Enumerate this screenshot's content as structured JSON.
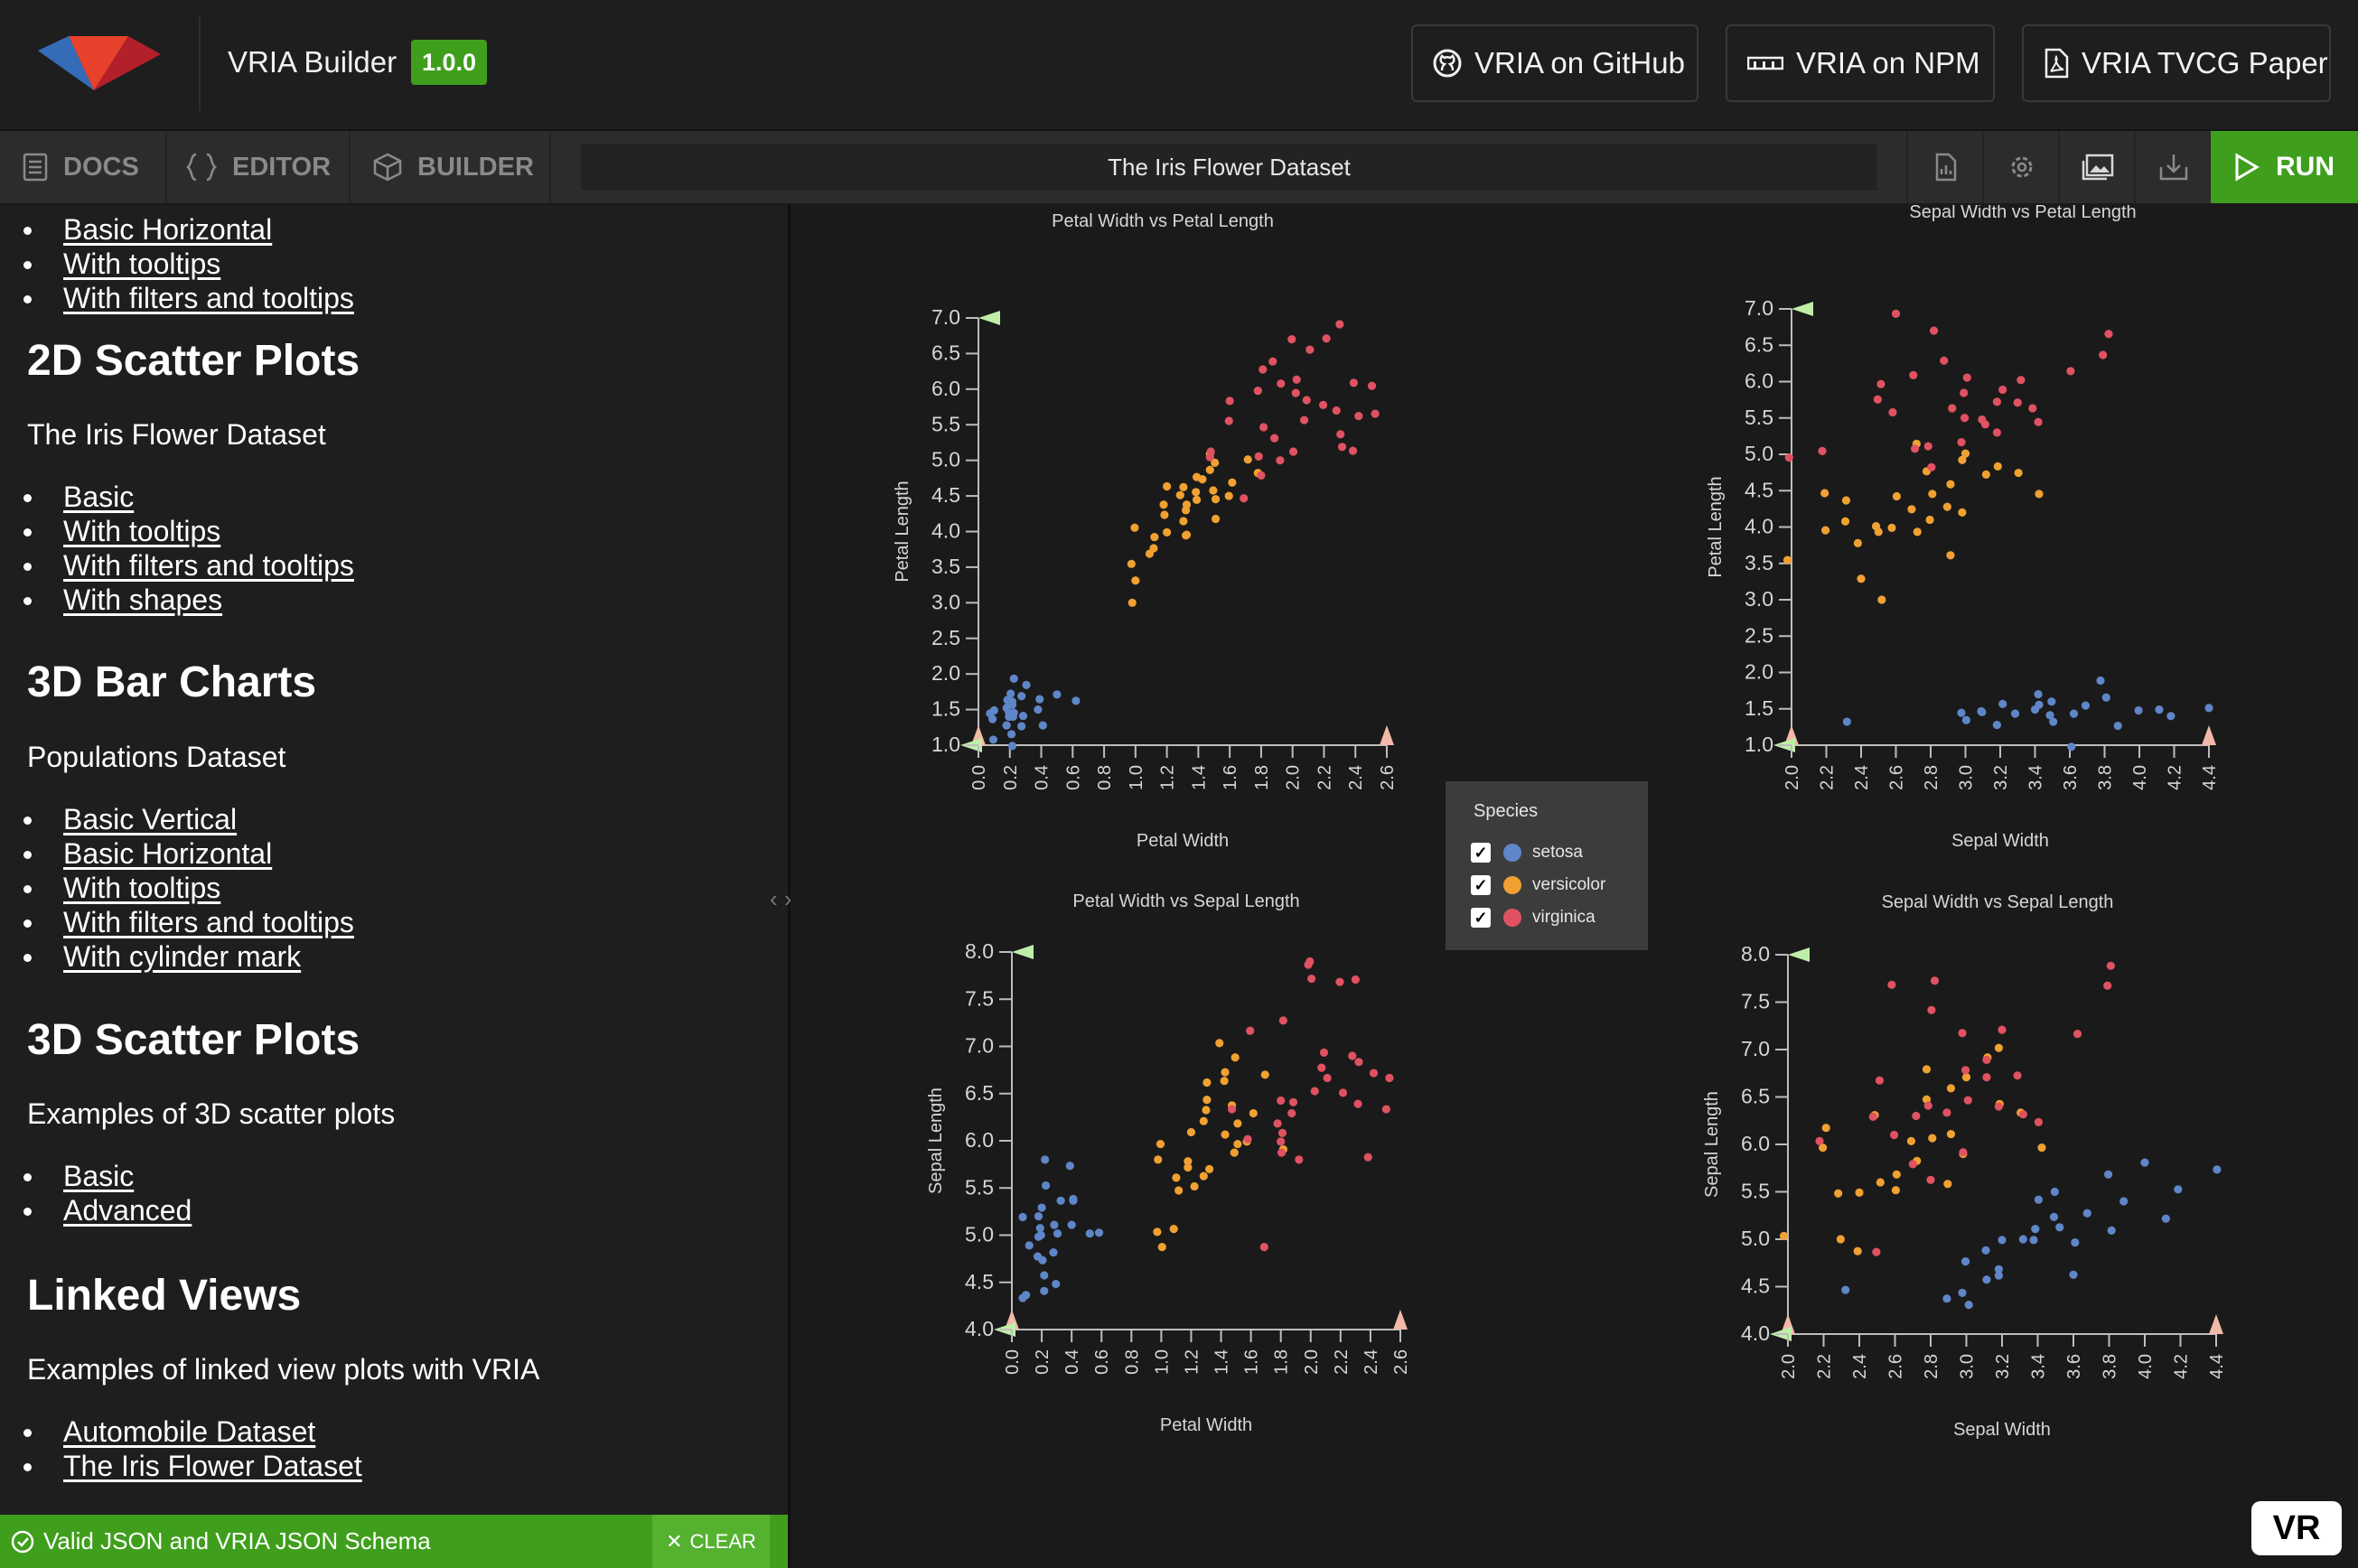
{
  "header": {
    "app_title": "VRIA Builder",
    "version": "1.0.0",
    "links": [
      {
        "label": "VRIA on GitHub",
        "icon": "github-icon"
      },
      {
        "label": "VRIA on NPM",
        "icon": "npm-icon"
      },
      {
        "label": "VRIA TVCG Paper",
        "icon": "pdf-icon"
      }
    ]
  },
  "toolbar": {
    "tabs": [
      {
        "label": "DOCS",
        "icon": "docs-icon"
      },
      {
        "label": "EDITOR",
        "icon": "code-braces-icon"
      },
      {
        "label": "BUILDER",
        "icon": "cube-icon"
      }
    ],
    "document_title": "The Iris Flower Dataset",
    "icons": [
      "file-icon",
      "gear-icon",
      "image-icon",
      "download-icon"
    ],
    "run_label": "RUN"
  },
  "docs": {
    "top_links": [
      "Basic Horizontal",
      "With tooltips",
      "With filters and tooltips"
    ],
    "sections": [
      {
        "title": "2D Scatter Plots",
        "subtitle": "The Iris Flower Dataset",
        "links": [
          "Basic",
          "With tooltips",
          "With filters and tooltips",
          "With shapes"
        ]
      },
      {
        "title": "3D Bar Charts",
        "subtitle": "Populations Dataset",
        "links": [
          "Basic Vertical",
          "Basic Horizontal",
          "With tooltips",
          "With filters and tooltips",
          "With cylinder mark"
        ]
      },
      {
        "title": "3D Scatter Plots",
        "subtitle": "Examples of 3D scatter plots",
        "links": [
          "Basic",
          "Advanced"
        ]
      },
      {
        "title": "Linked Views",
        "subtitle": "Examples of linked view plots with VRIA",
        "links": [
          "Automobile Dataset",
          "The Iris Flower Dataset"
        ]
      }
    ]
  },
  "status": {
    "message": "Valid JSON and VRIA JSON Schema",
    "clear_label": "CLEAR"
  },
  "legend": {
    "title": "Species",
    "items": [
      {
        "label": "setosa",
        "color": "#5f86c8",
        "checked": true
      },
      {
        "label": "versicolor",
        "color": "#f0a131",
        "checked": true
      },
      {
        "label": "virginica",
        "color": "#e05262",
        "checked": true
      }
    ]
  },
  "vr_label": "VR",
  "colors": {
    "accent": "#3f9f1c",
    "setosa": "#5f86c8",
    "versicolor": "#f0a131",
    "virginica": "#e05262"
  },
  "chart_data": [
    {
      "type": "scatter",
      "title": "Petal Width vs Petal Length",
      "xlabel": "Petal Width",
      "ylabel": "Petal Length",
      "xlim": [
        0.0,
        2.6
      ],
      "ylim": [
        1.0,
        7.0
      ],
      "xticks": [
        "0.0",
        "0.2",
        "0.4",
        "0.6",
        "0.8",
        "1.0",
        "1.2",
        "1.4",
        "1.6",
        "1.8",
        "2.0",
        "2.2",
        "2.4",
        "2.6"
      ],
      "yticks": [
        "1.0",
        "1.5",
        "2.0",
        "2.5",
        "3.0",
        "3.5",
        "4.0",
        "4.5",
        "5.0",
        "5.5",
        "6.0",
        "6.5",
        "7.0"
      ],
      "series": [
        {
          "name": "setosa",
          "x": [
            0.1,
            0.2,
            0.2,
            0.2,
            0.1,
            0.2,
            0.3,
            0.2,
            0.2,
            0.4,
            0.2,
            0.3,
            0.1,
            0.2,
            0.4,
            0.5,
            0.6,
            0.2,
            0.3,
            0.2,
            0.1,
            0.4,
            0.3,
            0.2,
            0.2,
            0.2
          ],
          "y": [
            1.4,
            1.5,
            1.6,
            1.3,
            1.5,
            1.4,
            1.4,
            1.7,
            1.9,
            1.6,
            1.2,
            1.3,
            1.1,
            1.0,
            1.5,
            1.7,
            1.6,
            1.6,
            1.8,
            1.5,
            1.4,
            1.3,
            1.7,
            1.4,
            1.6,
            1.5
          ]
        },
        {
          "name": "versicolor",
          "x": [
            1.0,
            1.0,
            1.1,
            1.2,
            1.2,
            1.3,
            1.3,
            1.3,
            1.4,
            1.4,
            1.5,
            1.5,
            1.5,
            1.6,
            1.0,
            1.0,
            1.1,
            1.2,
            1.3,
            1.3,
            1.4,
            1.5,
            1.5,
            1.6,
            1.7,
            1.8,
            1.2,
            1.3,
            1.4,
            1.5,
            1.3,
            1.1
          ],
          "y": [
            3.5,
            4.1,
            3.8,
            4.4,
            4.0,
            4.3,
            4.5,
            4.6,
            4.7,
            4.4,
            4.5,
            4.9,
            4.6,
            4.7,
            3.0,
            3.3,
            3.9,
            4.2,
            4.1,
            4.0,
            4.8,
            4.2,
            5.1,
            4.5,
            5.0,
            4.8,
            4.6,
            3.9,
            4.6,
            5.0,
            4.4,
            3.7
          ]
        },
        {
          "name": "virginica",
          "x": [
            1.5,
            1.6,
            1.8,
            1.8,
            1.8,
            1.9,
            1.9,
            2.0,
            2.0,
            2.1,
            2.1,
            2.1,
            2.2,
            2.3,
            2.3,
            2.3,
            2.4,
            2.4,
            2.5,
            2.5,
            1.7,
            1.8,
            1.9,
            2.0,
            2.2,
            1.5,
            1.6,
            2.0,
            1.8,
            2.3,
            1.9,
            2.4
          ],
          "y": [
            5.0,
            5.6,
            5.5,
            6.0,
            4.8,
            5.0,
            5.3,
            5.1,
            6.1,
            5.8,
            6.6,
            5.6,
            5.8,
            5.2,
            5.7,
            6.9,
            5.6,
            5.1,
            6.0,
            5.7,
            4.5,
            6.3,
            6.4,
            6.7,
            6.7,
            5.1,
            5.8,
            5.9,
            5.1,
            5.4,
            6.1,
            6.1
          ]
        }
      ]
    },
    {
      "type": "scatter",
      "title": "Sepal Width vs Petal Length",
      "xlabel": "Sepal Width",
      "ylabel": "Petal Length",
      "xlim": [
        2.0,
        4.4
      ],
      "ylim": [
        1.0,
        7.0
      ],
      "xticks": [
        "2.0",
        "2.2",
        "2.4",
        "2.6",
        "2.8",
        "3.0",
        "3.2",
        "3.4",
        "3.6",
        "3.8",
        "4.0",
        "4.2",
        "4.4"
      ],
      "yticks": [
        "1.0",
        "1.5",
        "2.0",
        "2.5",
        "3.0",
        "3.5",
        "4.0",
        "4.5",
        "5.0",
        "5.5",
        "6.0",
        "6.5",
        "7.0"
      ],
      "series": [
        {
          "name": "setosa",
          "x": [
            3.0,
            3.1,
            3.2,
            3.2,
            3.4,
            3.4,
            3.5,
            3.5,
            3.6,
            3.7,
            3.8,
            3.9,
            4.0,
            4.1,
            4.2,
            4.4,
            2.3,
            3.3,
            3.0,
            3.4,
            3.1,
            3.6,
            3.8,
            3.5
          ],
          "y": [
            1.4,
            1.5,
            1.6,
            1.3,
            1.5,
            1.7,
            1.4,
            1.3,
            1.4,
            1.5,
            1.7,
            1.3,
            1.5,
            1.5,
            1.4,
            1.5,
            1.3,
            1.4,
            1.3,
            1.6,
            1.5,
            1.0,
            1.9,
            1.6
          ]
        },
        {
          "name": "versicolor",
          "x": [
            2.0,
            2.2,
            2.3,
            2.4,
            2.4,
            2.5,
            2.5,
            2.6,
            2.7,
            2.7,
            2.8,
            2.8,
            2.9,
            2.9,
            3.0,
            3.0,
            3.1,
            3.2,
            3.3,
            3.4,
            2.2,
            2.3,
            2.6,
            2.8,
            2.9,
            3.0,
            2.5,
            2.7
          ],
          "y": [
            3.5,
            4.0,
            4.4,
            3.8,
            3.3,
            3.0,
            4.0,
            4.4,
            3.9,
            4.2,
            4.5,
            4.8,
            4.3,
            4.6,
            4.2,
            5.0,
            4.7,
            4.8,
            4.7,
            4.5,
            4.5,
            4.1,
            4.0,
            4.1,
            3.6,
            4.9,
            3.9,
            5.1
          ]
        },
        {
          "name": "virginica",
          "x": [
            2.2,
            2.5,
            2.5,
            2.6,
            2.7,
            2.8,
            2.8,
            2.8,
            2.9,
            3.0,
            3.0,
            3.0,
            3.1,
            3.2,
            3.2,
            3.3,
            3.3,
            3.4,
            3.6,
            3.8,
            3.8,
            2.7,
            2.9,
            3.0,
            3.1,
            3.2,
            2.6,
            3.4,
            2.0
          ],
          "y": [
            5.0,
            5.8,
            6.0,
            5.6,
            6.1,
            6.7,
            5.1,
            4.8,
            5.6,
            5.8,
            6.1,
            5.2,
            5.5,
            5.9,
            5.3,
            5.7,
            6.0,
            5.6,
            6.1,
            6.7,
            6.4,
            5.1,
            6.3,
            5.5,
            5.4,
            5.7,
            6.9,
            5.4,
            5.0
          ]
        }
      ]
    },
    {
      "type": "scatter",
      "title": "Petal Width vs Sepal Length",
      "xlabel": "Petal Width",
      "ylabel": "Sepal Length",
      "xlim": [
        0.0,
        2.6
      ],
      "ylim": [
        4.0,
        8.0
      ],
      "xticks": [
        "0.0",
        "0.2",
        "0.4",
        "0.6",
        "0.8",
        "1.0",
        "1.2",
        "1.4",
        "1.6",
        "1.8",
        "2.0",
        "2.2",
        "2.4",
        "2.6"
      ],
      "yticks": [
        "4.0",
        "4.5",
        "5.0",
        "5.5",
        "6.0",
        "6.5",
        "7.0",
        "7.5",
        "8.0"
      ],
      "series": [
        {
          "name": "setosa",
          "x": [
            0.1,
            0.1,
            0.2,
            0.2,
            0.2,
            0.2,
            0.3,
            0.3,
            0.2,
            0.4,
            0.4,
            0.2,
            0.3,
            0.1,
            0.2,
            0.4,
            0.5,
            0.6,
            0.2,
            0.3,
            0.2,
            0.4,
            0.1,
            0.2,
            0.2,
            0.3
          ],
          "y": [
            4.3,
            4.4,
            4.6,
            5.0,
            5.3,
            5.8,
            5.1,
            5.0,
            5.5,
            5.7,
            5.4,
            4.8,
            4.5,
            4.9,
            5.2,
            5.1,
            5.0,
            5.0,
            4.7,
            5.4,
            5.1,
            5.4,
            5.2,
            5.0,
            4.4,
            4.8
          ]
        },
        {
          "name": "versicolor",
          "x": [
            1.0,
            1.0,
            1.1,
            1.2,
            1.2,
            1.3,
            1.3,
            1.3,
            1.4,
            1.4,
            1.5,
            1.5,
            1.5,
            1.6,
            1.0,
            1.1,
            1.2,
            1.3,
            1.3,
            1.4,
            1.5,
            1.5,
            1.6,
            1.7,
            1.8,
            1.2,
            1.3,
            1.4,
            1.1,
            1.0
          ],
          "y": [
            5.0,
            6.0,
            5.5,
            5.8,
            6.1,
            5.7,
            6.2,
            6.6,
            6.7,
            7.0,
            6.0,
            6.4,
            6.9,
            6.3,
            5.8,
            5.6,
            5.5,
            5.6,
            6.4,
            6.1,
            5.9,
            6.2,
            6.0,
            6.7,
            5.9,
            5.7,
            6.3,
            6.6,
            5.1,
            4.9
          ]
        },
        {
          "name": "virginica",
          "x": [
            1.5,
            1.6,
            1.8,
            1.8,
            1.8,
            1.9,
            1.9,
            2.0,
            2.0,
            2.1,
            2.1,
            2.1,
            2.2,
            2.3,
            2.3,
            2.3,
            2.4,
            2.4,
            2.5,
            2.5,
            1.7,
            1.8,
            1.9,
            2.0,
            2.2,
            1.6,
            1.8,
            2.3,
            2.0,
            1.8
          ],
          "y": [
            6.3,
            7.2,
            7.3,
            6.2,
            6.0,
            5.8,
            6.4,
            7.7,
            6.5,
            6.9,
            6.7,
            6.8,
            7.7,
            6.4,
            6.9,
            7.7,
            6.7,
            5.8,
            6.3,
            6.7,
            4.9,
            6.1,
            6.3,
            7.9,
            6.5,
            6.0,
            6.4,
            6.8,
            7.9,
            5.9
          ]
        }
      ]
    },
    {
      "type": "scatter",
      "title": "Sepal Width vs Sepal Length",
      "xlabel": "Sepal Width",
      "ylabel": "Sepal Length",
      "xlim": [
        2.0,
        4.4
      ],
      "ylim": [
        4.0,
        8.0
      ],
      "xticks": [
        "2.0",
        "2.2",
        "2.4",
        "2.6",
        "2.8",
        "3.0",
        "3.2",
        "3.4",
        "3.6",
        "3.8",
        "4.0",
        "4.2",
        "4.4"
      ],
      "yticks": [
        "4.0",
        "4.5",
        "5.0",
        "5.5",
        "6.0",
        "6.5",
        "7.0",
        "7.5",
        "8.0"
      ],
      "series": [
        {
          "name": "setosa",
          "x": [
            3.0,
            3.0,
            3.1,
            3.2,
            3.2,
            3.3,
            3.4,
            3.4,
            3.5,
            3.5,
            3.6,
            3.7,
            3.8,
            3.8,
            3.9,
            4.0,
            4.1,
            4.2,
            4.4,
            2.3,
            2.9,
            3.1,
            3.4,
            3.5,
            3.0,
            3.2,
            3.6
          ],
          "y": [
            4.4,
            4.8,
            4.6,
            4.7,
            5.0,
            5.0,
            5.1,
            5.4,
            5.1,
            5.2,
            5.0,
            5.3,
            5.7,
            5.1,
            5.4,
            5.8,
            5.2,
            5.5,
            5.7,
            4.5,
            4.4,
            4.9,
            5.0,
            5.5,
            4.3,
            4.6,
            4.6
          ]
        },
        {
          "name": "versicolor",
          "x": [
            2.0,
            2.2,
            2.2,
            2.3,
            2.4,
            2.5,
            2.5,
            2.6,
            2.7,
            2.7,
            2.8,
            2.8,
            2.9,
            2.9,
            3.0,
            3.0,
            3.1,
            3.2,
            3.3,
            3.4,
            2.4,
            2.6,
            2.8,
            2.3,
            2.9,
            3.2
          ],
          "y": [
            5.0,
            6.0,
            6.2,
            5.5,
            5.5,
            5.6,
            6.3,
            5.5,
            5.8,
            6.0,
            6.1,
            6.5,
            5.6,
            6.6,
            5.9,
            6.7,
            6.9,
            6.4,
            6.3,
            6.0,
            4.9,
            5.7,
            6.8,
            5.0,
            6.1,
            7.0
          ]
        },
        {
          "name": "virginica",
          "x": [
            2.2,
            2.5,
            2.5,
            2.6,
            2.7,
            2.7,
            2.8,
            2.8,
            2.8,
            2.9,
            3.0,
            3.0,
            3.0,
            3.1,
            3.2,
            3.2,
            3.3,
            3.3,
            3.4,
            3.6,
            3.8,
            3.8,
            2.5,
            2.6,
            3.1,
            3.0,
            2.8
          ],
          "y": [
            6.0,
            4.9,
            6.7,
            7.7,
            5.8,
            6.3,
            6.4,
            7.4,
            7.7,
            6.3,
            6.5,
            7.2,
            6.8,
            6.9,
            6.4,
            7.2,
            6.3,
            6.7,
            6.2,
            7.2,
            7.7,
            7.9,
            6.3,
            6.1,
            6.7,
            5.9,
            5.6
          ]
        }
      ]
    }
  ]
}
